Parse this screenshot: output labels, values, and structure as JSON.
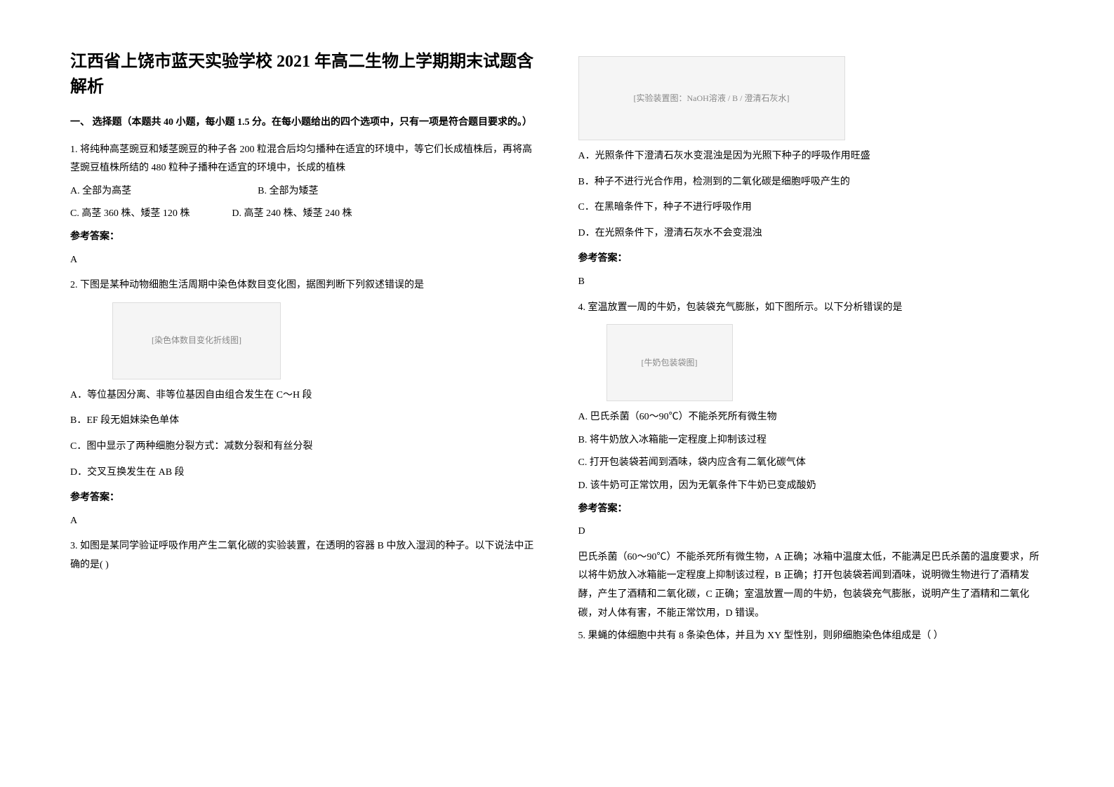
{
  "title": "江西省上饶市蓝天实验学校 2021 年高二生物上学期期末试题含解析",
  "section1": {
    "header": "一、 选择题（本题共 40 小题，每小题 1.5 分。在每小题给出的四个选项中，只有一项是符合题目要求的。）"
  },
  "q1": {
    "stem": "1. 将纯种高茎豌豆和矮茎豌豆的种子各 200 粒混合后均匀播种在适宜的环境中，等它们长成植株后，再将高茎豌豆植株所结的 480 粒种子播种在适宜的环境中，长成的植株",
    "optA": "A.  全部为高茎",
    "optB": "B.  全部为矮茎",
    "optC": "C.  高茎 360 株、矮茎 120 株",
    "optD": "D.  高茎 240 株、矮茎 240 株",
    "answer_label": "参考答案：",
    "answer": "A"
  },
  "q2": {
    "stem": "2. 下图是某种动物细胞生活周期中染色体数目变化图，据图判断下列叙述错误的是",
    "fig_alt": "[染色体数目变化折线图]",
    "optA": "A．等位基因分离、非等位基因自由组合发生在 C～H 段",
    "optB": "B．EF 段无姐妹染色单体",
    "optC": "C．图中显示了两种细胞分裂方式：减数分裂和有丝分裂",
    "optD": "D．交叉互换发生在 AB 段",
    "answer_label": "参考答案：",
    "answer": "A"
  },
  "q3": {
    "stem": "3. 如图是某同学验证呼吸作用产生二氧化碳的实验装置，在透明的容器 B 中放入湿润的种子。以下说法中正确的是(    )",
    "fig_alt": "[实验装置图：NaOH溶液 / B / 澄清石灰水]",
    "optA": "A．光照条件下澄清石灰水变混浊是因为光照下种子的呼吸作用旺盛",
    "optB": "B．种子不进行光合作用，检测到的二氧化碳是细胞呼吸产生的",
    "optC": "C．在黑暗条件下，种子不进行呼吸作用",
    "optD": "D．在光照条件下，澄清石灰水不会变混浊",
    "answer_label": "参考答案：",
    "answer": "B"
  },
  "q4": {
    "stem": "4. 室温放置一周的牛奶，包装袋充气膨胀，如下图所示。以下分析错误的是",
    "fig_alt": "[牛奶包装袋图]",
    "optA": "A.  巴氏杀菌（60～90℃）不能杀死所有微生物",
    "optB": "B.  将牛奶放入冰箱能一定程度上抑制该过程",
    "optC": "C.  打开包装袋若闻到酒味，袋内应含有二氧化碳气体",
    "optD": "D.  该牛奶可正常饮用，因为无氧条件下牛奶已变成酸奶",
    "answer_label": "参考答案：",
    "answer": "D",
    "explanation": "巴氏杀菌（60～90℃）不能杀死所有微生物，A 正确；冰箱中温度太低，不能满足巴氏杀菌的温度要求，所以将牛奶放入冰箱能一定程度上抑制该过程，B 正确；打开包装袋若闻到酒味，说明微生物进行了酒精发酵，产生了酒精和二氧化碳，C 正确；室温放置一周的牛奶，包装袋充气膨胀，说明产生了酒精和二氧化碳，对人体有害，不能正常饮用，D 错误。"
  },
  "q5": {
    "stem": "5. 果蝇的体细胞中共有 8 条染色体，并且为 XY 型性别，则卵细胞染色体组成是（  ）"
  }
}
